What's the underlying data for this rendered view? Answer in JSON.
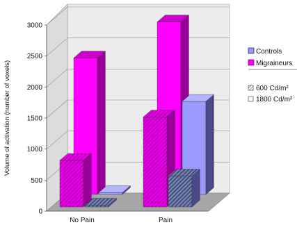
{
  "chart_data": {
    "type": "bar",
    "categories": [
      "No Pain",
      "Pain"
    ],
    "ylabel": "Volume of activation (number of voxels)",
    "ylim": [
      0,
      3000
    ],
    "yticks": [
      0,
      500,
      1000,
      1500,
      2000,
      2500,
      3000
    ],
    "series": [
      {
        "name": "Migraineurs",
        "group": "Migraineurs",
        "pattern": "600 Cd/m²",
        "values": [
          750,
          1450
        ]
      },
      {
        "name": "Controls",
        "group": "Controls",
        "pattern": "600 Cd/m²",
        "values": [
          30,
          500
        ]
      },
      {
        "name": "Migraineurs",
        "group": "Migraineurs",
        "pattern": "1800 Cd/m²",
        "values": [
          2200,
          2780
        ]
      },
      {
        "name": "Controls",
        "group": "Controls",
        "pattern": "1800 Cd/m²",
        "values": [
          30,
          1500
        ]
      }
    ],
    "legend": {
      "groups": [
        {
          "label": "Controls",
          "color": "#9999ff"
        },
        {
          "label": "Migraineurs",
          "color": "#ff00ff"
        }
      ],
      "patterns": [
        {
          "label": "600 Cd/m²",
          "style": "hatched"
        },
        {
          "label": "1800 Cd/m²",
          "style": "solid"
        }
      ],
      "placement": "right"
    },
    "colors": {
      "migraineurs_front": "#ff00ff",
      "migraineurs_side": "#990099",
      "migraineurs_top": "#cc00cc",
      "controls_front": "#9999ff",
      "controls_side": "#4a4a88",
      "controls_top": "#b3b3ff",
      "hatch_controls": "#333355",
      "hatch_migraineurs": "#990099",
      "wall": "#ececec",
      "floor": "#a6a6a6"
    },
    "grid": true
  }
}
